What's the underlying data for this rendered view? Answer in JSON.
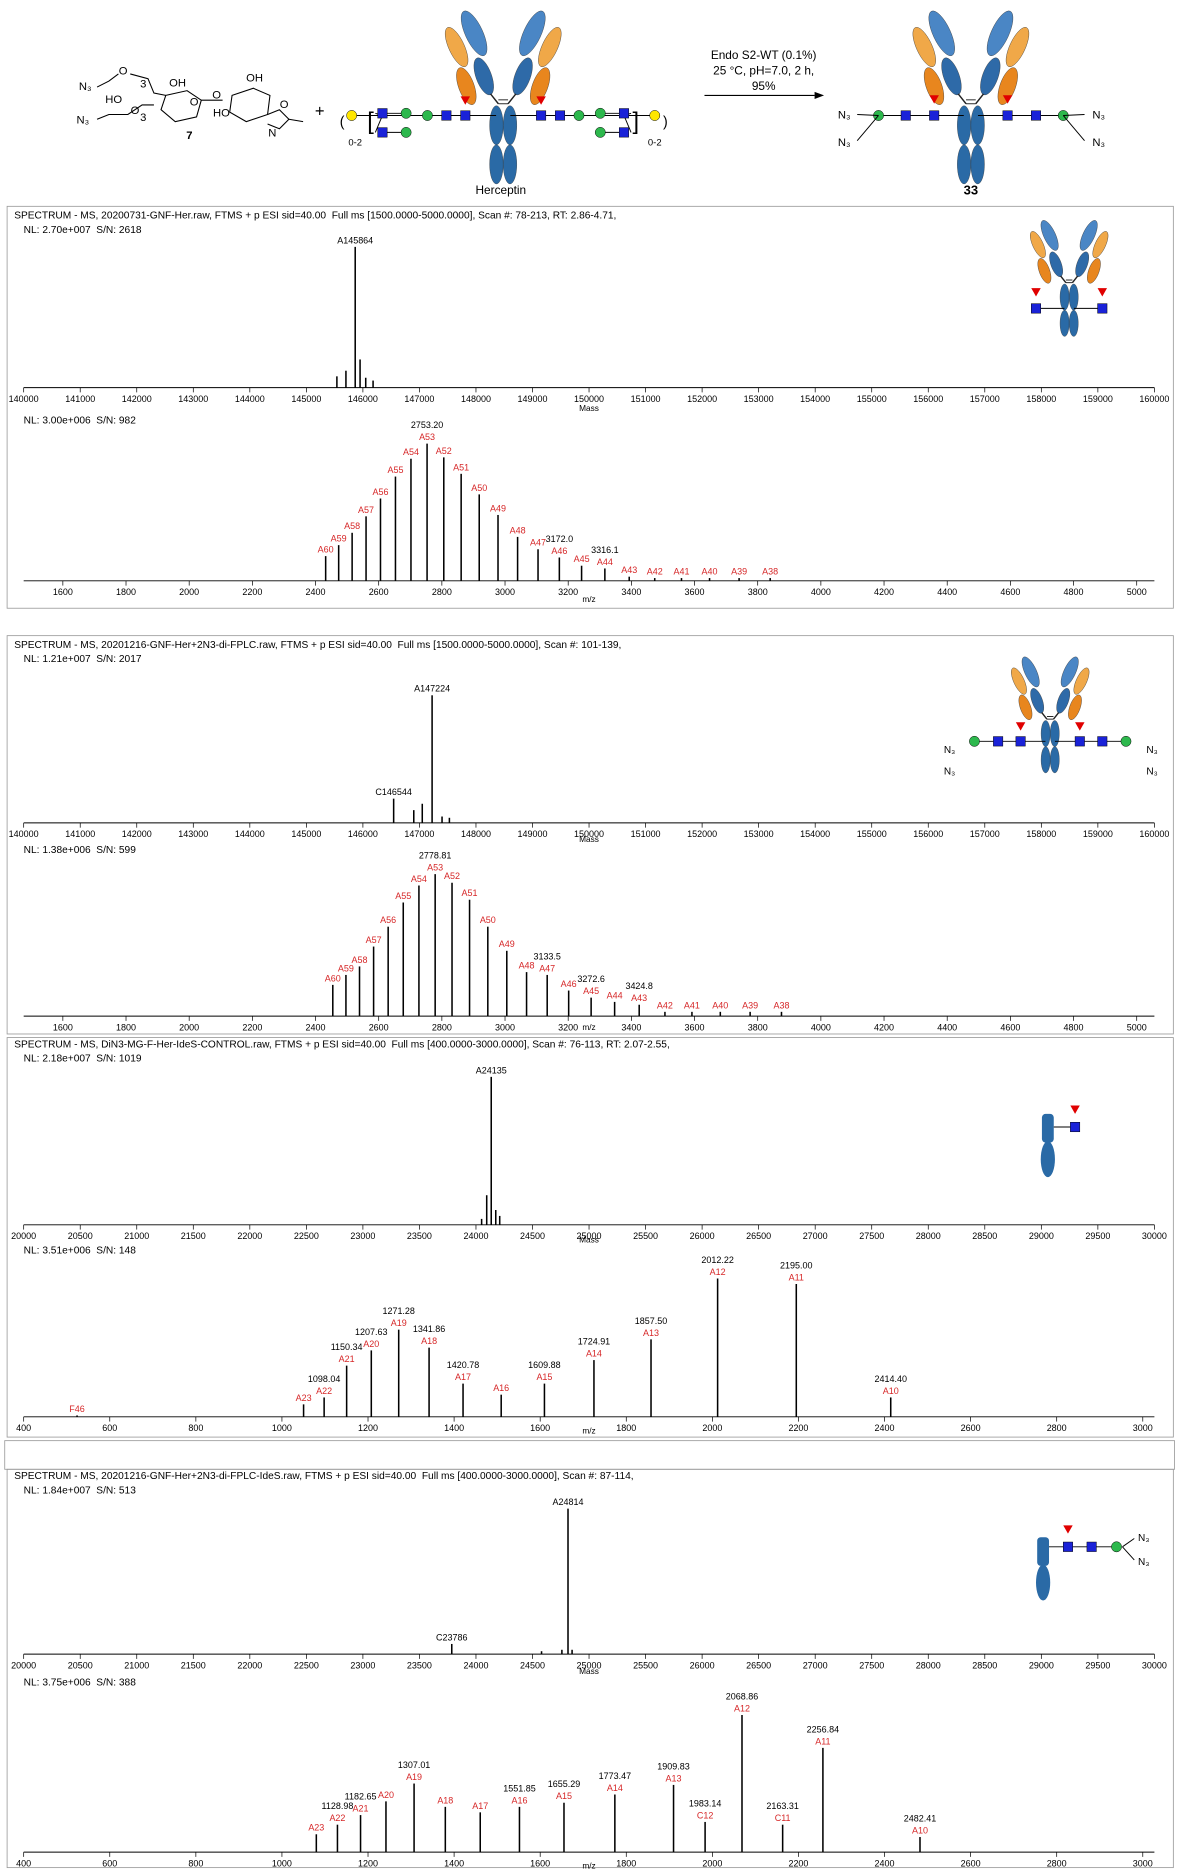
{
  "scheme": {
    "compound_texts": [
      "N₃",
      "O",
      "3",
      "HO",
      "OH",
      "O",
      "O",
      "OH",
      "HO",
      "O",
      "3",
      "N₃",
      "O",
      "N",
      "7"
    ],
    "plus": "+",
    "linker_left": "0-2",
    "linker_right": "0-2",
    "herceptin": "Herceptin",
    "conditions": [
      "Endo S2-WT (0.1%)",
      "25 °C, pH=7.0, 2 h,",
      "95%"
    ],
    "product_n3": [
      "N₃",
      "N₃",
      "N₃",
      "N₃"
    ],
    "product": "33"
  },
  "icon_n3": {
    "c2": [
      "N₃",
      "N₃",
      "N₃",
      "N₃"
    ],
    "c6": [
      "N₃",
      "N₃"
    ]
  },
  "chart_data": [
    {
      "type": "bar",
      "header": [
        "SPECTRUM - MS, 20200731-GNF-Her.raw, FTMS + p ESI sid=40.00  Full ms [1500.0000-5000.0000], Scan #: 78-213, RT: 2.86-4.71,",
        "NL: 2.70e+007  S/N: 2618"
      ],
      "xlabel": "Mass",
      "xlim": [
        140000,
        160000
      ],
      "xticks": [
        140000,
        141000,
        142000,
        143000,
        144000,
        145000,
        146000,
        147000,
        148000,
        149000,
        150000,
        151000,
        152000,
        153000,
        154000,
        155000,
        156000,
        157000,
        158000,
        159000,
        160000
      ],
      "ylim": [
        0,
        100
      ],
      "color": "#000000",
      "label_color": "#000000",
      "x": [
        145540,
        145700,
        145864,
        145950,
        146050,
        146180
      ],
      "values": [
        8,
        12,
        100,
        20,
        7,
        5
      ],
      "labels": [
        null,
        null,
        "A145864",
        null,
        null,
        null
      ]
    },
    {
      "type": "bar",
      "header": [
        "NL: 3.00e+006  S/N: 982"
      ],
      "xlabel": "m/z",
      "xlim": [
        1476,
        5056
      ],
      "xticks": [
        1600,
        1800,
        2000,
        2200,
        2400,
        2600,
        2800,
        3000,
        3200,
        3400,
        3600,
        3800,
        4000,
        4200,
        4400,
        4600,
        4800,
        5000
      ],
      "ylim": [
        0,
        100
      ],
      "color": "#000000",
      "label_color": "#d62728",
      "x": [
        2432.1,
        2473.3,
        2515.9,
        2560.0,
        2605.7,
        2653.1,
        2702.2,
        2753.2,
        2806.1,
        2861.1,
        2918.3,
        2977.8,
        3039.8,
        3104.5,
        3172.0,
        3242.4,
        3316.1,
        3393.2,
        3474.0,
        3558.7,
        3647.6,
        3741.1,
        3839.5
      ],
      "values": [
        18,
        26,
        35,
        47,
        60,
        76,
        89,
        100,
        90,
        78,
        63,
        48,
        32,
        23,
        17,
        11,
        9,
        3,
        2,
        2,
        2,
        2,
        2
      ],
      "labels": [
        "A60",
        "A59",
        "A58",
        "A57",
        "A56",
        "A55",
        "A54",
        "A53",
        "A52",
        "A51",
        "A50",
        "A49",
        "A48",
        "A47",
        "A46",
        "A45",
        "A44",
        "A43",
        "A42",
        "A41",
        "A40",
        "A39",
        "A38"
      ],
      "x_labels": [
        null,
        null,
        null,
        null,
        null,
        null,
        null,
        "2753.20",
        null,
        null,
        null,
        null,
        null,
        null,
        "3172.0",
        null,
        "3316.1",
        null,
        null,
        null,
        null,
        null,
        null
      ]
    },
    {
      "type": "bar",
      "header": [
        "SPECTRUM - MS, 20201216-GNF-Her+2N3-di-FPLC.raw, FTMS + p ESI sid=40.00  Full ms [1500.0000-5000.0000], Scan #: 101-139,",
        "NL: 1.21e+007  S/N: 2017"
      ],
      "xlabel": "Mass",
      "xlim": [
        140000,
        160000
      ],
      "xticks": [
        140000,
        141000,
        142000,
        143000,
        144000,
        145000,
        146000,
        147000,
        148000,
        149000,
        150000,
        151000,
        152000,
        153000,
        154000,
        155000,
        156000,
        157000,
        158000,
        159000,
        160000
      ],
      "ylim": [
        0,
        100
      ],
      "color": "#000000",
      "label_color": "#000000",
      "x": [
        146544,
        146900,
        147050,
        147224,
        147400,
        147530
      ],
      "values": [
        19,
        10,
        15,
        100,
        5,
        4
      ],
      "labels": [
        "C146544",
        null,
        null,
        "A147224",
        null,
        null
      ]
    },
    {
      "type": "bar",
      "header": [
        "NL: 1.38e+006  S/N: 599"
      ],
      "xlabel": "m/z",
      "xlim": [
        1476,
        5056
      ],
      "xticks": [
        1600,
        1800,
        2000,
        2200,
        2400,
        2600,
        2800,
        3000,
        3200,
        3400,
        3600,
        3800,
        4000,
        4200,
        4400,
        4600,
        4800,
        5000
      ],
      "ylim": [
        0,
        100
      ],
      "color": "#000000",
      "label_color": "#d62728",
      "x": [
        2454.7,
        2496.3,
        2539.3,
        2583.9,
        2630.0,
        2677.8,
        2727.4,
        2778.81,
        2832.2,
        2887.7,
        2945.5,
        3005.6,
        3068.2,
        3133.5,
        3201.5,
        3272.6,
        3347.0,
        3424.8,
        3506.3,
        3591.8,
        3681.6,
        3776.0,
        3875.3
      ],
      "values": [
        22,
        29,
        35,
        49,
        63,
        80,
        92,
        100,
        94,
        82,
        63,
        46,
        31,
        29,
        18,
        13,
        10,
        8,
        3,
        3,
        3,
        3,
        3
      ],
      "labels": [
        "A60",
        "A59",
        "A58",
        "A57",
        "A56",
        "A55",
        "A54",
        "A53",
        "A52",
        "A51",
        "A50",
        "A49",
        "A48",
        "A47",
        "A46",
        "A45",
        "A44",
        "A43",
        "A42",
        "A41",
        "A40",
        "A39",
        "A38"
      ],
      "x_labels": [
        null,
        null,
        null,
        null,
        null,
        null,
        null,
        "2778.81",
        null,
        null,
        null,
        null,
        null,
        "3133.5",
        null,
        "3272.6",
        null,
        "3424.8",
        null,
        null,
        null,
        null,
        null
      ]
    },
    {
      "type": "bar",
      "header": [
        "SPECTRUM - MS, DiN3-MG-F-Her-IdeS-CONTROL.raw, FTMS + p ESI sid=40.00  Full ms [400.0000-3000.0000], Scan #: 76-113, RT: 2.07-2.55,",
        "NL: 2.18e+007  S/N: 1019"
      ],
      "xlabel": "Mass",
      "xlim": [
        20000,
        30000
      ],
      "xticks": [
        20000,
        20500,
        21000,
        21500,
        22000,
        22500,
        23000,
        23500,
        24000,
        24500,
        25000,
        25500,
        26000,
        26500,
        27000,
        27500,
        28000,
        28500,
        29000,
        29500,
        30000
      ],
      "ylim": [
        0,
        100
      ],
      "color": "#000000",
      "label_color": "#000000",
      "x": [
        24050,
        24095,
        24135,
        24175,
        24210
      ],
      "values": [
        4,
        20,
        100,
        10,
        6
      ],
      "labels": [
        null,
        null,
        "A24135",
        null,
        null
      ]
    },
    {
      "type": "bar",
      "header": [
        "NL: 3.51e+006  S/N: 148"
      ],
      "xlabel": "m/z",
      "xlim": [
        400,
        3027
      ],
      "xticks": [
        400,
        600,
        800,
        1000,
        1200,
        1400,
        1600,
        1800,
        2000,
        2200,
        2400,
        2600,
        2800,
        3000
      ],
      "ylim": [
        0,
        100
      ],
      "color": "#000000",
      "label_color": "#d62728",
      "x": [
        524,
        1050.3,
        1098.04,
        1150.34,
        1207.63,
        1271.28,
        1341.86,
        1420.78,
        1509.4,
        1609.88,
        1724.91,
        1857.5,
        2012.22,
        2195.0,
        2414.4
      ],
      "values": [
        1,
        9,
        14,
        37,
        48,
        63,
        50,
        24,
        16,
        24,
        41,
        56,
        100,
        96,
        14
      ],
      "labels": [
        "F46",
        "A23",
        "A22",
        "A21",
        "A20",
        "A19",
        "A18",
        "A17",
        "A16",
        "A15",
        "A14",
        "A13",
        "A12",
        "A11",
        "A10"
      ],
      "x_labels": [
        null,
        null,
        "1098.04",
        "1150.34",
        "1207.63",
        "1271.28",
        "1341.86",
        "1420.78",
        null,
        "1609.88",
        "1724.91",
        "1857.50",
        "2012.22",
        "2195.00",
        "2414.40"
      ]
    },
    {
      "type": "bar",
      "header": [
        "SPECTRUM - MS, 20201216-GNF-Her+2N3-di-FPLC-IdeS.raw, FTMS + p ESI sid=40.00  Full ms [400.0000-3000.0000], Scan #: 87-114,",
        "NL: 1.84e+007  S/N: 513"
      ],
      "xlabel": "Mass",
      "xlim": [
        20000,
        30000
      ],
      "xticks": [
        20000,
        20500,
        21000,
        21500,
        22000,
        22500,
        23000,
        23500,
        24000,
        24500,
        25000,
        25500,
        26000,
        26500,
        27000,
        27500,
        28000,
        28500,
        29000,
        29500,
        30000
      ],
      "ylim": [
        0,
        100
      ],
      "color": "#000000",
      "label_color": "#000000",
      "x": [
        23786,
        24580,
        24760,
        24814,
        24850
      ],
      "values": [
        7,
        2,
        3,
        100,
        3
      ],
      "labels": [
        "C23786",
        null,
        null,
        "A24814",
        null
      ]
    },
    {
      "type": "bar",
      "header": [
        "NL: 3.75e+006  S/N: 388"
      ],
      "xlabel": "m/z",
      "xlim": [
        400,
        3027
      ],
      "xticks": [
        400,
        600,
        800,
        1000,
        1200,
        1400,
        1600,
        1800,
        2000,
        2200,
        2400,
        2600,
        2800,
        3000
      ],
      "ylim": [
        0,
        100
      ],
      "color": "#000000",
      "label_color": "#d62728",
      "x": [
        1079.9,
        1128.98,
        1182.65,
        1241.7,
        1307.01,
        1379.6,
        1460.7,
        1551.85,
        1655.29,
        1773.47,
        1909.83,
        1983.14,
        2068.86,
        2163.31,
        2256.84,
        2482.41
      ],
      "values": [
        13,
        20,
        27,
        37,
        50,
        33,
        29,
        33,
        36,
        42,
        49,
        22,
        100,
        20,
        76,
        11
      ],
      "labels": [
        "A23",
        "A22",
        "A21",
        "A20",
        "A19",
        "A18",
        "A17",
        "A16",
        "A15",
        "A14",
        "A13",
        "C12",
        "A12",
        "C11",
        "A11",
        "A10"
      ],
      "x_labels": [
        null,
        "1128.98",
        "1182.65",
        null,
        "1307.01",
        null,
        null,
        "1551.85",
        "1655.29",
        "1773.47",
        "1909.83",
        "1983.14",
        "2068.86",
        "2163.31",
        "2256.84",
        "2482.41"
      ]
    }
  ]
}
